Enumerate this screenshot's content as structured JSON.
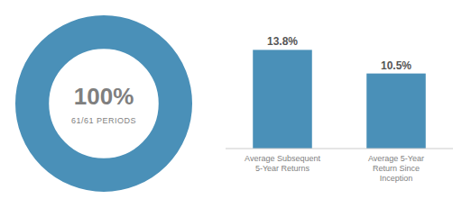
{
  "chart_data": [
    {
      "type": "donut",
      "values": [
        100
      ],
      "value_labels": [
        "100%"
      ],
      "data_labels": true,
      "color": "#4a90b8",
      "annotations": [
        "61/61 PERIODS"
      ]
    },
    {
      "type": "bar",
      "categories": [
        "Average Subsequent\n5-Year Returns",
        "Average 5-Year\nReturn Since\nInception"
      ],
      "values": [
        13.8,
        10.5
      ],
      "value_labels": [
        "13.8%",
        "10.5%"
      ],
      "data_labels": true,
      "color": "#4a90b8",
      "ylim": [
        0,
        17
      ],
      "tick_labels": "x",
      "grid": false
    }
  ]
}
